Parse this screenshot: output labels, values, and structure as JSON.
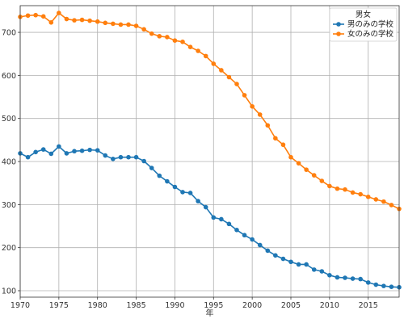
{
  "chart_data": {
    "type": "line",
    "xlabel": "年",
    "ylabel": "",
    "xlim": [
      1970,
      2019
    ],
    "ylim": [
      85,
      762
    ],
    "xticks": [
      1970,
      1975,
      1980,
      1985,
      1990,
      1995,
      2000,
      2005,
      2010,
      2015
    ],
    "yticks": [
      100,
      200,
      300,
      400,
      500,
      600,
      700
    ],
    "grid": true,
    "legend": {
      "title": "男女",
      "placement": "top-right"
    },
    "x": [
      1970,
      1971,
      1972,
      1973,
      1974,
      1975,
      1976,
      1977,
      1978,
      1979,
      1980,
      1981,
      1982,
      1983,
      1984,
      1985,
      1986,
      1987,
      1988,
      1989,
      1990,
      1991,
      1992,
      1993,
      1994,
      1995,
      1996,
      1997,
      1998,
      1999,
      2000,
      2001,
      2002,
      2003,
      2004,
      2005,
      2006,
      2007,
      2008,
      2009,
      2010,
      2011,
      2012,
      2013,
      2014,
      2015,
      2016,
      2017,
      2018,
      2019
    ],
    "series": [
      {
        "name": "男のみの学校",
        "color": "#1f77b4",
        "values": [
          419,
          410,
          422,
          428,
          418,
          435,
          419,
          424,
          425,
          427,
          426,
          414,
          406,
          410,
          410,
          410,
          401,
          385,
          367,
          354,
          341,
          329,
          327,
          308,
          294,
          270,
          266,
          255,
          241,
          229,
          219,
          206,
          193,
          182,
          174,
          167,
          161,
          161,
          149,
          145,
          136,
          131,
          130,
          128,
          127,
          119,
          114,
          111,
          109,
          108
        ]
      },
      {
        "name": "女のみの学校",
        "color": "#ff7f0e",
        "values": [
          736,
          739,
          740,
          737,
          723,
          745,
          731,
          728,
          729,
          727,
          725,
          722,
          720,
          718,
          718,
          715,
          707,
          697,
          691,
          689,
          681,
          678,
          666,
          657,
          645,
          627,
          612,
          596,
          580,
          554,
          528,
          509,
          484,
          454,
          439,
          410,
          396,
          381,
          368,
          355,
          343,
          337,
          335,
          328,
          324,
          318,
          312,
          307,
          299,
          290
        ]
      }
    ]
  }
}
